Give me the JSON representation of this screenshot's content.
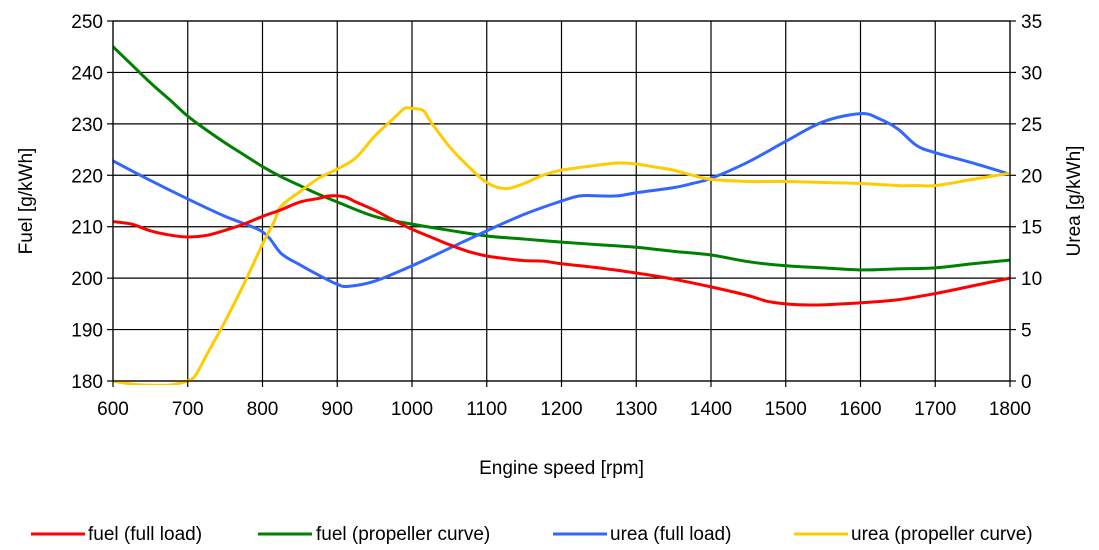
{
  "chart_data": {
    "type": "line",
    "xlabel": "Engine speed [rpm]",
    "ylabel_left": "Fuel [g/kWh]",
    "ylabel_right": "Urea [g/kWh]",
    "xlim": [
      600,
      1800
    ],
    "ylim_left": [
      180,
      250
    ],
    "ylim_right": [
      0,
      35
    ],
    "x_ticks": [
      "600",
      "700",
      "800",
      "900",
      "1000",
      "1100",
      "1200",
      "1300",
      "1400",
      "1500",
      "1600",
      "1700",
      "1800"
    ],
    "y_ticks_left": [
      "180",
      "190",
      "200",
      "210",
      "220",
      "230",
      "240",
      "250"
    ],
    "y_ticks_right": [
      "0",
      "5",
      "10",
      "15",
      "20",
      "25",
      "30",
      "35"
    ],
    "grid": true,
    "legend_position": "bottom",
    "series": [
      {
        "name": "fuel (full load)",
        "axis": "left",
        "color": "#ff0000",
        "points": [
          [
            600,
            211
          ],
          [
            625,
            210.5
          ],
          [
            650,
            209.2
          ],
          [
            675,
            208.4
          ],
          [
            700,
            208
          ],
          [
            725,
            208.3
          ],
          [
            750,
            209.3
          ],
          [
            775,
            210.5
          ],
          [
            800,
            212
          ],
          [
            825,
            213.3
          ],
          [
            850,
            214.8
          ],
          [
            875,
            215.5
          ],
          [
            890,
            216
          ],
          [
            910,
            215.8
          ],
          [
            925,
            214.8
          ],
          [
            950,
            213.2
          ],
          [
            975,
            211.3
          ],
          [
            1000,
            209.5
          ],
          [
            1025,
            208
          ],
          [
            1050,
            206.5
          ],
          [
            1075,
            205.2
          ],
          [
            1100,
            204.3
          ],
          [
            1125,
            203.8
          ],
          [
            1150,
            203.4
          ],
          [
            1175,
            203.3
          ],
          [
            1200,
            202.8
          ],
          [
            1250,
            202
          ],
          [
            1300,
            201
          ],
          [
            1350,
            199.8
          ],
          [
            1400,
            198.3
          ],
          [
            1450,
            196.6
          ],
          [
            1475,
            195.5
          ],
          [
            1500,
            195
          ],
          [
            1525,
            194.8
          ],
          [
            1550,
            194.8
          ],
          [
            1575,
            195
          ],
          [
            1600,
            195.2
          ],
          [
            1650,
            195.8
          ],
          [
            1700,
            197
          ],
          [
            1750,
            198.5
          ],
          [
            1800,
            200
          ]
        ]
      },
      {
        "name": "fuel (propeller curve)",
        "axis": "left",
        "color": "#008000",
        "points": [
          [
            600,
            245
          ],
          [
            625,
            241.5
          ],
          [
            650,
            238
          ],
          [
            675,
            234.8
          ],
          [
            700,
            231.5
          ],
          [
            725,
            228.8
          ],
          [
            750,
            226.3
          ],
          [
            775,
            224
          ],
          [
            800,
            221.7
          ],
          [
            825,
            219.7
          ],
          [
            850,
            218
          ],
          [
            875,
            216.3
          ],
          [
            900,
            214.8
          ],
          [
            950,
            212
          ],
          [
            1000,
            210.5
          ],
          [
            1050,
            209.3
          ],
          [
            1100,
            208.2
          ],
          [
            1150,
            207.6
          ],
          [
            1200,
            207
          ],
          [
            1250,
            206.5
          ],
          [
            1300,
            206
          ],
          [
            1350,
            205.2
          ],
          [
            1400,
            204.5
          ],
          [
            1450,
            203.2
          ],
          [
            1500,
            202.4
          ],
          [
            1550,
            202
          ],
          [
            1600,
            201.6
          ],
          [
            1650,
            201.8
          ],
          [
            1700,
            202
          ],
          [
            1750,
            202.8
          ],
          [
            1800,
            203.5
          ]
        ]
      },
      {
        "name": "urea (full load)",
        "axis": "right",
        "color": "#3366ff",
        "points": [
          [
            600,
            21.4
          ],
          [
            650,
            19.5
          ],
          [
            700,
            17.7
          ],
          [
            750,
            16
          ],
          [
            800,
            14.5
          ],
          [
            825,
            12.4
          ],
          [
            850,
            11.3
          ],
          [
            875,
            10.3
          ],
          [
            900,
            9.4
          ],
          [
            915,
            9.2
          ],
          [
            950,
            9.7
          ],
          [
            1000,
            11.2
          ],
          [
            1050,
            12.9
          ],
          [
            1100,
            14.6
          ],
          [
            1150,
            16.2
          ],
          [
            1200,
            17.5
          ],
          [
            1225,
            18
          ],
          [
            1250,
            18
          ],
          [
            1275,
            18
          ],
          [
            1300,
            18.3
          ],
          [
            1350,
            18.8
          ],
          [
            1375,
            19.2
          ],
          [
            1400,
            19.7
          ],
          [
            1450,
            21.3
          ],
          [
            1500,
            23.3
          ],
          [
            1550,
            25.2
          ],
          [
            1600,
            26
          ],
          [
            1625,
            25.5
          ],
          [
            1650,
            24.5
          ],
          [
            1675,
            22.9
          ],
          [
            1700,
            22.2
          ],
          [
            1750,
            21.2
          ],
          [
            1800,
            20.1
          ]
        ]
      },
      {
        "name": "urea (propeller curve)",
        "axis": "right",
        "color": "#ffcc00",
        "points": [
          [
            600,
            0
          ],
          [
            625,
            -0.3
          ],
          [
            650,
            -0.4
          ],
          [
            675,
            -0.4
          ],
          [
            690,
            -0.2
          ],
          [
            700,
            0
          ],
          [
            710,
            0.5
          ],
          [
            725,
            2.5
          ],
          [
            750,
            5.8
          ],
          [
            775,
            9.4
          ],
          [
            800,
            13.3
          ],
          [
            815,
            15.4
          ],
          [
            825,
            17
          ],
          [
            850,
            18.4
          ],
          [
            875,
            19.7
          ],
          [
            900,
            20.6
          ],
          [
            925,
            21.7
          ],
          [
            950,
            23.8
          ],
          [
            975,
            25.5
          ],
          [
            990,
            26.5
          ],
          [
            1000,
            26.5
          ],
          [
            1015,
            26.3
          ],
          [
            1025,
            25.2
          ],
          [
            1050,
            22.8
          ],
          [
            1075,
            20.9
          ],
          [
            1100,
            19.3
          ],
          [
            1125,
            18.7
          ],
          [
            1150,
            19.2
          ],
          [
            1175,
            20
          ],
          [
            1200,
            20.5
          ],
          [
            1250,
            21
          ],
          [
            1275,
            21.2
          ],
          [
            1300,
            21.1
          ],
          [
            1325,
            20.8
          ],
          [
            1350,
            20.5
          ],
          [
            1375,
            20
          ],
          [
            1400,
            19.6
          ],
          [
            1450,
            19.4
          ],
          [
            1500,
            19.4
          ],
          [
            1550,
            19.3
          ],
          [
            1600,
            19.2
          ],
          [
            1650,
            19
          ],
          [
            1675,
            19
          ],
          [
            1700,
            19
          ],
          [
            1750,
            19.6
          ],
          [
            1800,
            20.2
          ]
        ]
      }
    ]
  }
}
